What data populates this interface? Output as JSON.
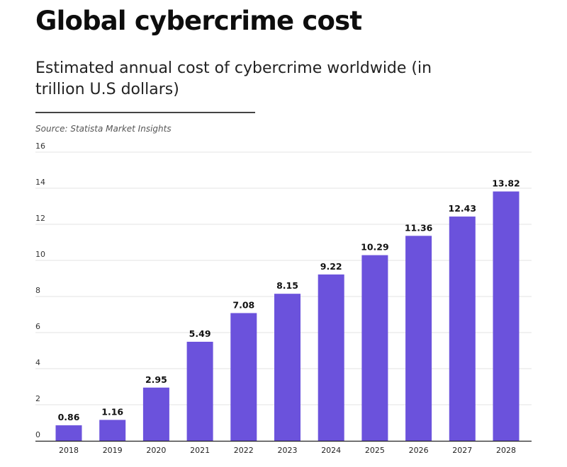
{
  "header": {
    "title": "Global cybercrime cost",
    "subtitle": "Estimated annual cost of cybercrime worldwide (in trillion U.S dollars)",
    "source": "Source: Statista Market Insights"
  },
  "chart_data": {
    "type": "bar",
    "title": "Global cybercrime cost",
    "subtitle": "Estimated annual cost of cybercrime worldwide (in trillion U.S dollars)",
    "xlabel": "",
    "ylabel": "",
    "categories": [
      "2018",
      "2019",
      "2020",
      "2021",
      "2022",
      "2023",
      "2024",
      "2025",
      "2026",
      "2027",
      "2028"
    ],
    "values": [
      0.86,
      1.16,
      2.95,
      5.49,
      7.08,
      8.15,
      9.22,
      10.29,
      11.36,
      12.43,
      13.82
    ],
    "value_labels": [
      "0.86",
      "1.16",
      "2.95",
      "5.49",
      "7.08",
      "8.15",
      "9.22",
      "10.29",
      "11.36",
      "12.43",
      "13.82"
    ],
    "ylim": [
      0,
      16
    ],
    "yticks": [
      0,
      2,
      4,
      6,
      8,
      10,
      12,
      14,
      16
    ],
    "grid": true,
    "legend": "none",
    "colors": {
      "bar": "#6b52dc",
      "grid": "#e3e3e3",
      "axis": "#222222"
    }
  }
}
